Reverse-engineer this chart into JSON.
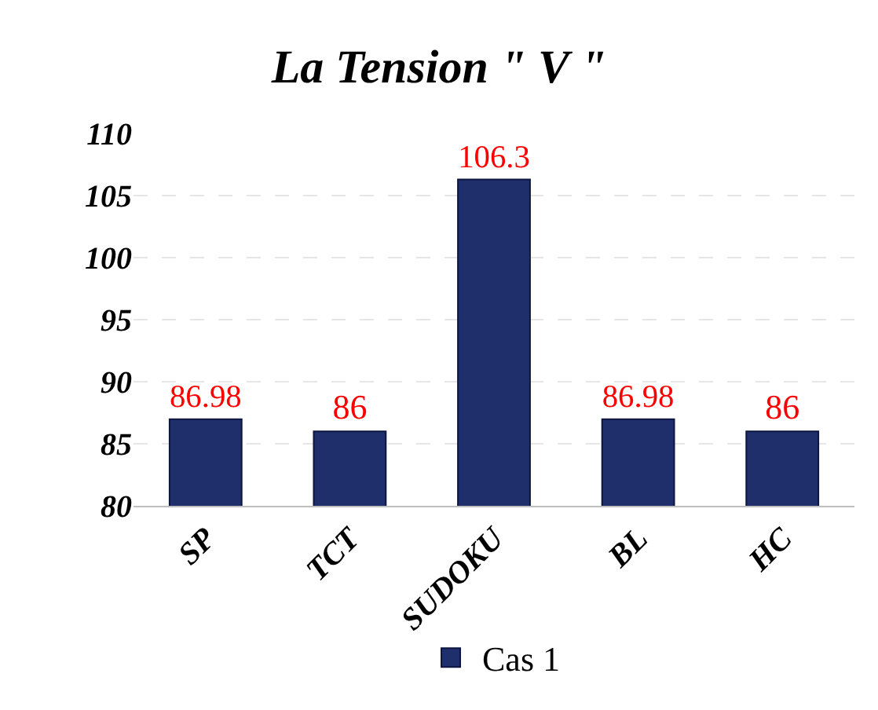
{
  "chart_data": {
    "type": "bar",
    "title": "La Tension \" V \"",
    "categories": [
      "SP",
      "TCT",
      "SUDOKU",
      "BL",
      "HC"
    ],
    "series": [
      {
        "name": "Cas 1",
        "color": "#1f2f6b",
        "values": [
          86.98,
          86,
          106.3,
          86.98,
          86
        ]
      }
    ],
    "ylim": [
      80,
      110
    ],
    "yticks": [
      80,
      85,
      90,
      95,
      100,
      105,
      110
    ],
    "grid": "y",
    "legend": "bottom",
    "data_labels": true
  }
}
